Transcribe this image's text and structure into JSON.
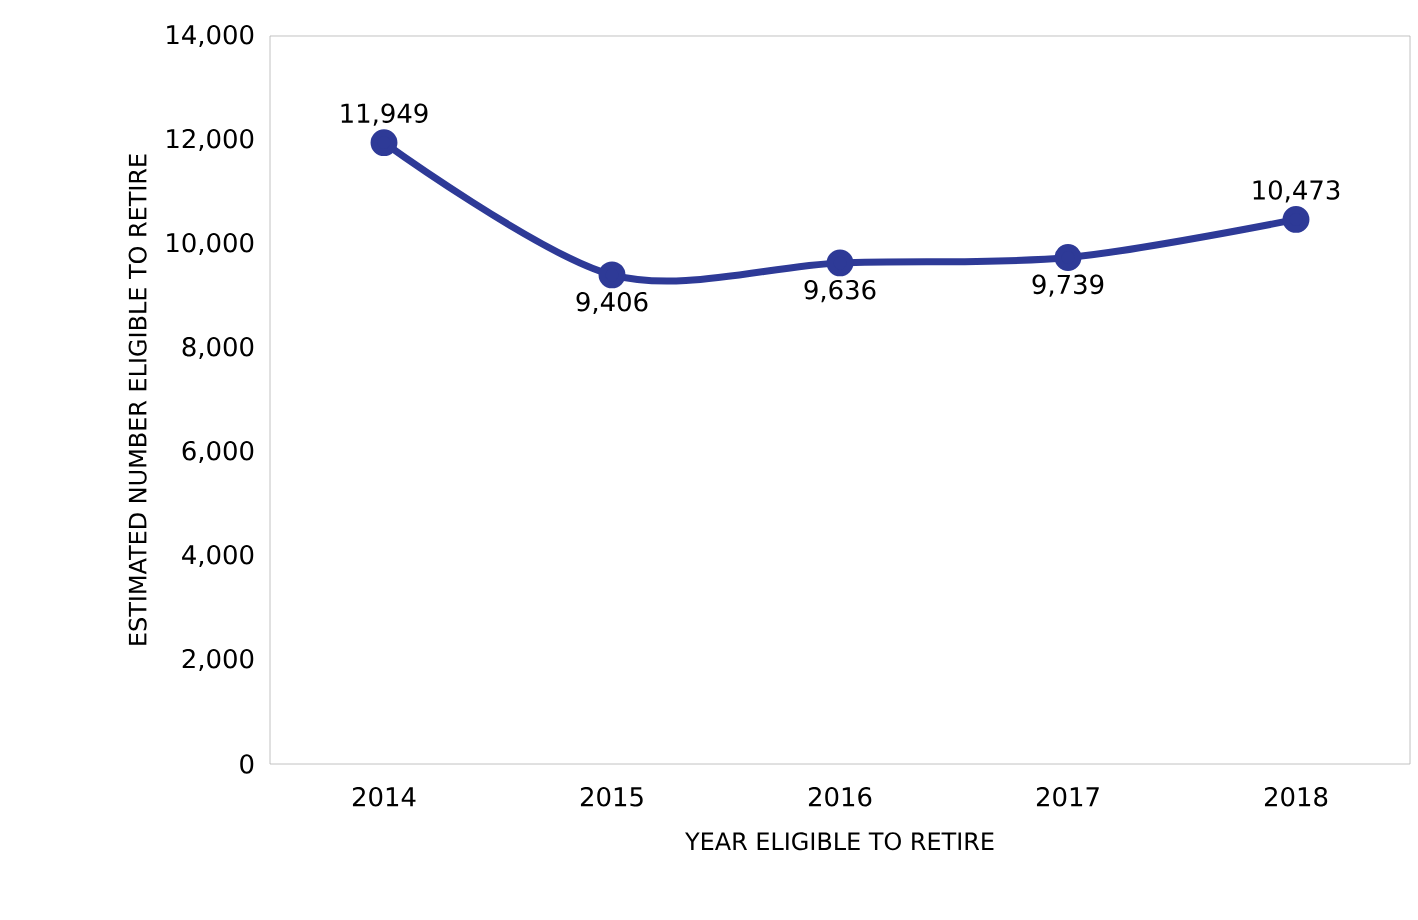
{
  "chart_data": {
    "type": "line",
    "xlabel": "YEAR ELIGIBLE TO RETIRE",
    "ylabel": "ESTIMATED NUMBER ELIGIBLE TO RETIRE",
    "categories": [
      "2014",
      "2015",
      "2016",
      "2017",
      "2018"
    ],
    "series": [
      {
        "color": "#2e3a97",
        "values": [
          11949,
          9406,
          9636,
          9739,
          10473
        ],
        "value_labels": [
          "11,949",
          "9,406",
          "9,636",
          "9,739",
          "10,473"
        ]
      }
    ],
    "ylim": [
      0,
      14000
    ],
    "yticks": [
      {
        "value": 0,
        "label": "0"
      },
      {
        "value": 2000,
        "label": "2,000"
      },
      {
        "value": 4000,
        "label": "4,000"
      },
      {
        "value": 6000,
        "label": "6,000"
      },
      {
        "value": 8000,
        "label": "8,000"
      },
      {
        "value": 10000,
        "label": "10,000"
      },
      {
        "value": 12000,
        "label": "12,000"
      },
      {
        "value": 14000,
        "label": "14,000"
      }
    ],
    "marker": "circle",
    "line_style": "solid"
  }
}
